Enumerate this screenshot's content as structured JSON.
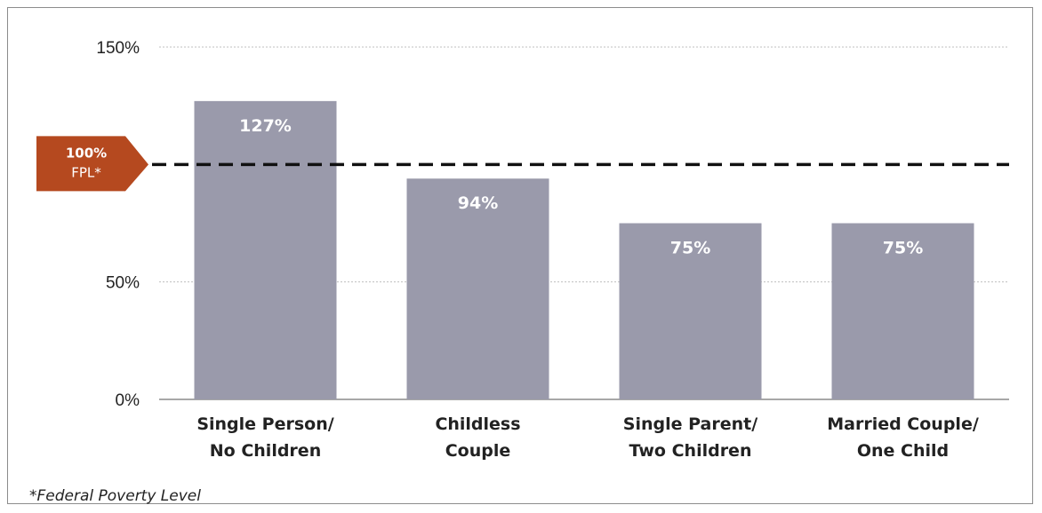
{
  "chart_data": {
    "type": "bar",
    "categories": [
      [
        "Single Person/",
        "No Children"
      ],
      [
        "Childless",
        "Couple"
      ],
      [
        "Single Parent/",
        "Two Children"
      ],
      [
        "Married Couple/",
        "One Child"
      ]
    ],
    "values": [
      127,
      94,
      75,
      75
    ],
    "value_labels": [
      "127%",
      "94%",
      "75%",
      "75%"
    ],
    "y_ticks": [
      {
        "value": 0,
        "label": "0%"
      },
      {
        "value": 50,
        "label": "50%"
      },
      {
        "value": 150,
        "label": "150%"
      }
    ],
    "ylim": [
      0,
      150
    ],
    "reference_line": {
      "value": 100,
      "label": "100%",
      "sublabel": "FPL*",
      "style": "dashed"
    },
    "grid": true,
    "colors": {
      "bar": "#9a9aab",
      "reference_tag": "#b5491f",
      "gridline": "#bfbfbf",
      "dashed_line": "#111111"
    }
  },
  "footnote": "*Federal Poverty Level"
}
